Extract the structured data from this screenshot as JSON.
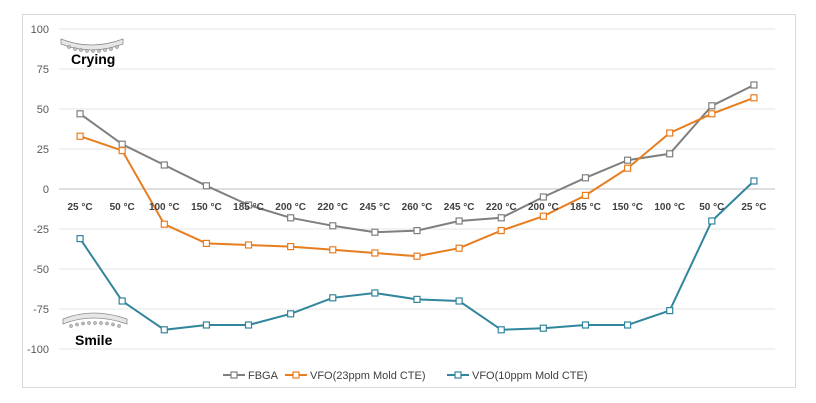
{
  "chart_data": {
    "type": "line",
    "categories": [
      "25 °C",
      "50 °C",
      "100 °C",
      "150 °C",
      "185 °C",
      "200 °C",
      "220 °C",
      "245 °C",
      "260 °C",
      "245 °C",
      "220 °C",
      "200 °C",
      "185 °C",
      "150 °C",
      "100 °C",
      "50 °C",
      "25 °C"
    ],
    "series": [
      {
        "name": "FBGA",
        "color": "#7f7f7f",
        "values": [
          47,
          28,
          15,
          2,
          -10,
          -18,
          -23,
          -27,
          -26,
          -20,
          -18,
          -5,
          7,
          18,
          22,
          52,
          65
        ]
      },
      {
        "name": "VFO(23ppm Mold CTE)",
        "color": "#e87d1e",
        "values": [
          33,
          24,
          -22,
          -34,
          -35,
          -36,
          -38,
          -40,
          -42,
          -37,
          -26,
          -17,
          -4,
          13,
          35,
          47,
          57
        ]
      },
      {
        "name": "VFO(10ppm Mold CTE)",
        "color": "#31859c",
        "values": [
          -31,
          -70,
          -88,
          -85,
          -85,
          -78,
          -68,
          -65,
          -69,
          -70,
          -88,
          -87,
          -85,
          -85,
          -76,
          -20,
          5
        ]
      }
    ],
    "ylim": [
      -100,
      100
    ],
    "yticks": [
      100,
      75,
      50,
      25,
      0,
      -25,
      -50,
      -75,
      -100
    ],
    "grid": true,
    "legend": "bottom",
    "annotations": {
      "top": "Crying",
      "bottom": "Smile"
    }
  }
}
